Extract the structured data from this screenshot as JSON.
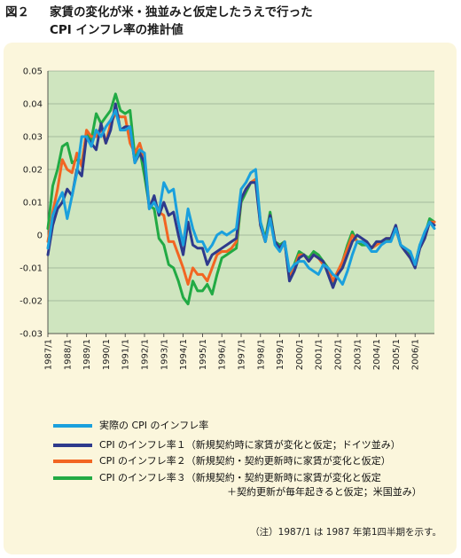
{
  "header": {
    "figure_number": "図２",
    "title_line1": "家賃の変化が米・独並みと仮定したうえで行った",
    "title_line2": "CPI インフレ率の推計値"
  },
  "note": "（注）1987/1 は 1987 年第1四半期を示す。",
  "legend": [
    {
      "label": "実際の CPI のインフレ率",
      "color": "#1aa0dd",
      "cont": ""
    },
    {
      "label": "CPI のインフレ率１（新規契約時に家賃が変化と仮定；ドイツ並み）",
      "color": "#2e3a8c",
      "cont": ""
    },
    {
      "label": "CPI のインフレ率２（新規契約・契約更新時に家賃が変化と仮定）",
      "color": "#f26522",
      "cont": ""
    },
    {
      "label": "CPI のインフレ率３（新規契約・契約更新時に家賃が変化と仮定",
      "color": "#22aa44",
      "cont": "＋契約更新が毎年起きると仮定；米国並み）"
    }
  ],
  "chart_data": {
    "type": "line",
    "ylim": [
      -0.03,
      0.05
    ],
    "y_ticks": [
      "0.05",
      "0.04",
      "0.03",
      "0.02",
      "0.01",
      "0",
      "-0.01",
      "-0.02",
      "-0.03"
    ],
    "x_labels": [
      "1987/1",
      "1988/1",
      "1989/1",
      "1990/1",
      "1991/1",
      "1992/1",
      "1993/1",
      "1994/1",
      "1995/1",
      "1996/1",
      "1997/1",
      "1998/1",
      "1999/1",
      "2000/1",
      "2001/1",
      "2002/1",
      "2003/1",
      "2004/1",
      "2005/1",
      "2006/1"
    ],
    "x_start": "1987/1",
    "grid": "horizontal",
    "colors": {
      "plot_bg": "#cfe5bf",
      "actual": "#1aa0dd",
      "cpi1": "#2e3a8c",
      "cpi2": "#f26522",
      "cpi3": "#22aa44"
    },
    "series": [
      {
        "name": "実際の CPI のインフレ率",
        "key": "actual",
        "values": [
          -0.004,
          0.006,
          0.01,
          0.013,
          0.005,
          0.012,
          0.019,
          0.03,
          0.03,
          0.027,
          0.032,
          0.03,
          0.033,
          0.035,
          0.038,
          0.032,
          0.032,
          0.033,
          0.022,
          0.026,
          0.025,
          0.008,
          0.01,
          0.007,
          0.016,
          0.013,
          0.014,
          0.004,
          -0.003,
          0.008,
          0.002,
          -0.002,
          -0.002,
          -0.005,
          -0.003,
          0,
          0.001,
          0,
          0.001,
          0.002,
          0.014,
          0.016,
          0.019,
          0.02,
          0.004,
          -0.002,
          0.005,
          -0.003,
          -0.005,
          -0.002,
          -0.011,
          -0.009,
          -0.008,
          -0.008,
          -0.01,
          -0.011,
          -0.012,
          -0.009,
          -0.01,
          -0.012,
          -0.013,
          -0.015,
          -0.011,
          -0.006,
          -0.002,
          -0.002,
          -0.003,
          -0.005,
          -0.005,
          -0.003,
          -0.002,
          -0.002,
          0.002,
          -0.003,
          -0.004,
          -0.005,
          -0.009,
          -0.003,
          0.001,
          0.004,
          0.002
        ]
      },
      {
        "name": "CPI のインフレ率１",
        "key": "cpi1",
        "values": [
          -0.006,
          0.003,
          0.008,
          0.01,
          0.014,
          0.012,
          0.02,
          0.018,
          0.03,
          0.028,
          0.026,
          0.034,
          0.028,
          0.032,
          0.04,
          0.032,
          0.033,
          0.033,
          0.022,
          0.025,
          0.022,
          0.008,
          0.012,
          0.006,
          0.01,
          0.006,
          0.007,
          0,
          -0.006,
          0.004,
          -0.003,
          -0.004,
          -0.004,
          -0.009,
          -0.006,
          -0.005,
          -0.004,
          -0.003,
          -0.002,
          -0.001,
          0.011,
          0.014,
          0.016,
          0.016,
          0.003,
          -0.002,
          0.006,
          -0.002,
          -0.004,
          -0.002,
          -0.014,
          -0.011,
          -0.007,
          -0.006,
          -0.008,
          -0.006,
          -0.007,
          -0.008,
          -0.012,
          -0.016,
          -0.012,
          -0.01,
          -0.006,
          -0.002,
          0,
          -0.001,
          -0.002,
          -0.004,
          -0.002,
          -0.002,
          -0.001,
          -0.001,
          0.003,
          -0.003,
          -0.005,
          -0.007,
          -0.01,
          -0.004,
          -0.001,
          0.004,
          0.003
        ]
      },
      {
        "name": "CPI のインフレ率２",
        "key": "cpi2",
        "values": [
          -0.002,
          0.007,
          0.014,
          0.023,
          0.02,
          0.019,
          0.025,
          0.021,
          0.032,
          0.03,
          0.03,
          0.033,
          0.028,
          0.034,
          0.037,
          0.036,
          0.036,
          0.028,
          0.025,
          0.028,
          0.023,
          0.009,
          0.011,
          0.007,
          0.006,
          -0.002,
          -0.002,
          -0.006,
          -0.01,
          -0.015,
          -0.01,
          -0.012,
          -0.012,
          -0.014,
          -0.01,
          -0.006,
          -0.005,
          -0.005,
          -0.004,
          -0.002,
          0.011,
          0.014,
          0.016,
          0.017,
          0.003,
          -0.002,
          0.006,
          -0.002,
          -0.004,
          -0.002,
          -0.013,
          -0.01,
          -0.006,
          -0.006,
          -0.008,
          -0.006,
          -0.007,
          -0.009,
          -0.01,
          -0.014,
          -0.011,
          -0.008,
          -0.004,
          0,
          -0.002,
          -0.002,
          -0.002,
          -0.004,
          -0.003,
          -0.002,
          -0.001,
          -0.001,
          0.002,
          -0.003,
          -0.005,
          -0.007,
          -0.009,
          -0.004,
          -0.001,
          0.004,
          0.004
        ]
      },
      {
        "name": "CPI のインフレ率３",
        "key": "cpi3",
        "values": [
          0.002,
          0.015,
          0.02,
          0.027,
          0.028,
          0.022,
          0.023,
          0.022,
          0.031,
          0.029,
          0.037,
          0.034,
          0.036,
          0.038,
          0.043,
          0.038,
          0.037,
          0.038,
          0.024,
          0.026,
          0.018,
          0.009,
          0.008,
          -0.001,
          -0.003,
          -0.009,
          -0.01,
          -0.014,
          -0.019,
          -0.021,
          -0.014,
          -0.017,
          -0.017,
          -0.015,
          -0.018,
          -0.012,
          -0.007,
          -0.006,
          -0.005,
          -0.004,
          0.01,
          0.013,
          0.016,
          0.017,
          0.004,
          -0.001,
          0.007,
          -0.002,
          -0.003,
          -0.002,
          -0.013,
          -0.009,
          -0.005,
          -0.006,
          -0.007,
          -0.005,
          -0.006,
          -0.008,
          -0.01,
          -0.015,
          -0.012,
          -0.008,
          -0.003,
          0.001,
          -0.002,
          -0.003,
          -0.003,
          -0.004,
          -0.003,
          -0.002,
          -0.002,
          -0.001,
          0.002,
          -0.003,
          -0.005,
          -0.006,
          -0.009,
          -0.003,
          0,
          0.005,
          0.004
        ]
      }
    ]
  }
}
